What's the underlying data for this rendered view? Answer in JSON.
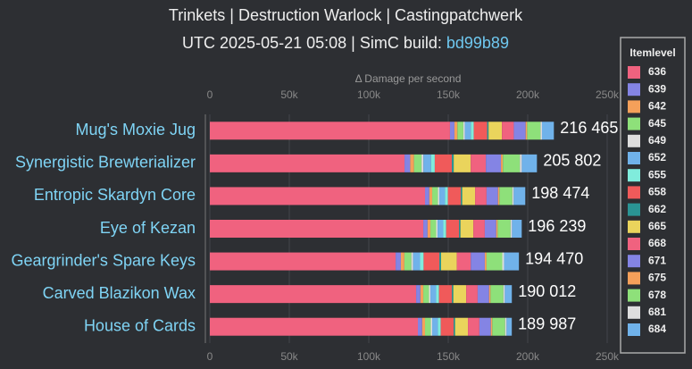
{
  "chart_data": {
    "type": "stacked-bar-horizontal",
    "title": "Trinkets | Destruction Warlock | Castingpatchwerk",
    "subtitle": "UTC 2025-05-21 05:08 | SimC build:",
    "build": "bd99b89",
    "x_axis_label": "Δ Damage per second",
    "legend_title": "Itemlevel",
    "legend_position": "right",
    "categories": [
      "Mug's Moxie Jug",
      "Synergistic Brewterializer",
      "Entropic Skardyn Core",
      "Eye of Kezan",
      "Geargrinder's Spare Keys",
      "Carved Blazikon Wax",
      "House of Cards"
    ],
    "totals": [
      216465,
      205802,
      198474,
      196239,
      194470,
      190012,
      189987
    ],
    "total_labels": [
      "216 465",
      "205 802",
      "198 474",
      "196 239",
      "194 470",
      "190 012",
      "189 987"
    ],
    "xlim": [
      0,
      250000
    ],
    "xticks": [
      0,
      {
        "value": 50000,
        "label": "50k"
      },
      {
        "value": 100000,
        "label": "100k"
      },
      {
        "value": 150000,
        "label": "150k"
      },
      {
        "value": 200000,
        "label": "200k"
      },
      {
        "value": 250000,
        "label": "250k"
      }
    ],
    "grid": true,
    "series": [
      {
        "name": "636",
        "color": "#f0627f",
        "values": [
          151100,
          122500,
          135400,
          134300,
          116900,
          129800,
          130900
        ]
      },
      {
        "name": "639",
        "color": "#8484e4",
        "values": [
          2800,
          3570,
          2700,
          2700,
          3300,
          2700,
          2700
        ]
      },
      {
        "name": "642",
        "color": "#f5a05a",
        "values": [
          1870,
          2380,
          1800,
          1800,
          2200,
          1800,
          1800
        ]
      },
      {
        "name": "645",
        "color": "#8ee07a",
        "values": [
          3740,
          4760,
          3600,
          3600,
          4400,
          3600,
          3600
        ]
      },
      {
        "name": "649",
        "color": "#dedede",
        "values": [
          930,
          1190,
          900,
          900,
          1100,
          900,
          900
        ]
      },
      {
        "name": "652",
        "color": "#70b2ea",
        "values": [
          3740,
          4760,
          3600,
          3600,
          4400,
          3600,
          3600
        ]
      },
      {
        "name": "655",
        "color": "#80ecdc",
        "values": [
          1870,
          2380,
          1800,
          1800,
          2200,
          1800,
          1800
        ]
      },
      {
        "name": "658",
        "color": "#f05a5a",
        "values": [
          8400,
          10710,
          8100,
          8100,
          9900,
          8100,
          8100
        ]
      },
      {
        "name": "662",
        "color": "#2a9494",
        "values": [
          930,
          1190,
          900,
          900,
          1100,
          900,
          900
        ]
      },
      {
        "name": "665",
        "color": "#ead45c",
        "values": [
          8400,
          10710,
          8100,
          8100,
          9900,
          8100,
          8100
        ]
      },
      {
        "name": "668",
        "color": "#f0627f",
        "values": [
          7470,
          9520,
          7200,
          7200,
          8800,
          7200,
          7200
        ]
      },
      {
        "name": "671",
        "color": "#8484e4",
        "values": [
          7470,
          9520,
          7200,
          7200,
          8800,
          7200,
          7200
        ]
      },
      {
        "name": "675",
        "color": "#f5a05a",
        "values": [
          930,
          1190,
          900,
          900,
          1100,
          900,
          900
        ]
      },
      {
        "name": "678",
        "color": "#8ee07a",
        "values": [
          8400,
          10710,
          8100,
          8100,
          9900,
          8100,
          8100
        ]
      },
      {
        "name": "681",
        "color": "#dedede",
        "values": [
          930,
          1190,
          900,
          900,
          1100,
          900,
          900
        ]
      },
      {
        "name": "684",
        "color": "#70b2ea",
        "values": [
          7485,
          9522,
          7274,
          6139,
          9370,
          4412,
          3287
        ]
      }
    ]
  }
}
